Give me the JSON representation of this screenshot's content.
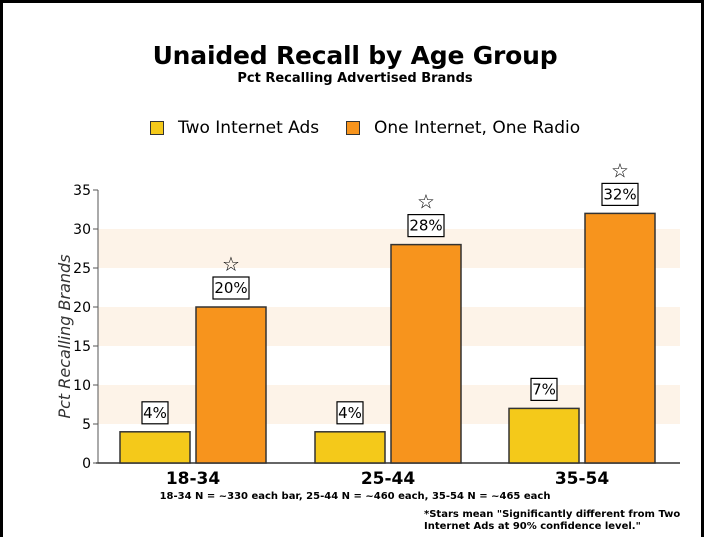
{
  "chart_data": {
    "type": "bar",
    "title": "Unaided Recall by Age Group",
    "subtitle": "Pct Recalling Advertised Brands",
    "ylabel": "Pct Recalling Brands",
    "ylim": [
      0,
      35
    ],
    "yticks": [
      0,
      5,
      10,
      15,
      20,
      25,
      30,
      35
    ],
    "categories": [
      "18-34",
      "25-44",
      "35-54"
    ],
    "series": [
      {
        "name": "Two Internet Ads",
        "values": [
          4,
          4,
          7
        ],
        "labels": [
          "4%",
          "4%",
          "7%"
        ],
        "color": "#f4c91a",
        "starred": [
          false,
          false,
          false
        ]
      },
      {
        "name": "One Internet, One Radio",
        "values": [
          20,
          28,
          32
        ],
        "labels": [
          "20%",
          "28%",
          "32%"
        ],
        "color": "#f7941d",
        "starred": [
          true,
          true,
          true
        ]
      }
    ],
    "legend": "top-center",
    "grid": "alternating horizontal bands",
    "band_color": "#fdf3e8",
    "star_symbol": "☆",
    "note_line": "18-34 N = ~330 each bar, 25-44 N = ~460 each, 35-54 N = ~465 each",
    "footnote_lines": [
      "*Stars mean \"Significantly different from Two",
      "Internet Ads at 90% confidence level.\""
    ]
  }
}
